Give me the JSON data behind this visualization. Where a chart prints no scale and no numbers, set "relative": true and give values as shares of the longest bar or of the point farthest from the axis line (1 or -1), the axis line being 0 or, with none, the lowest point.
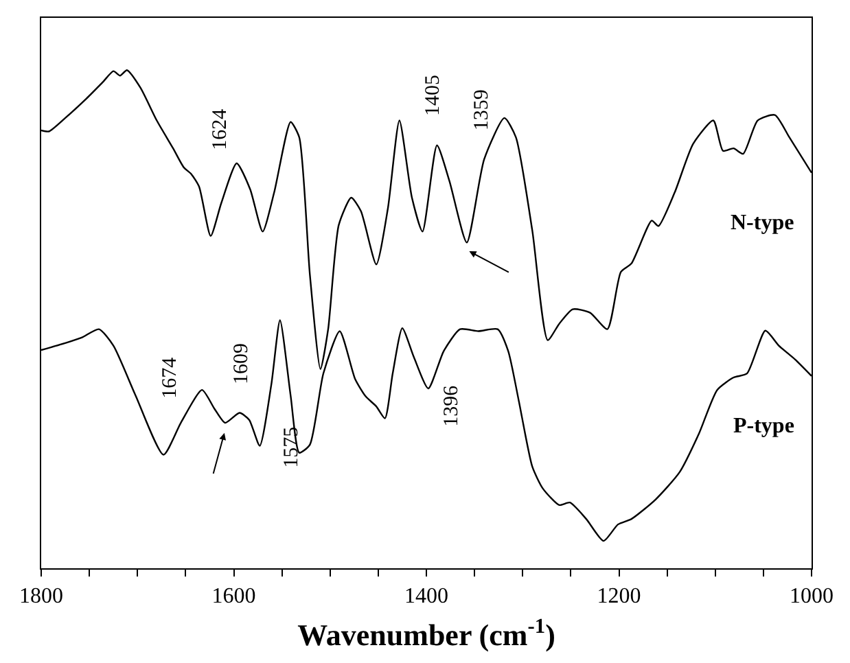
{
  "chart_data": {
    "type": "line",
    "relative": true,
    "xlabel": "Wavenumber (cm$^{-1}$)",
    "xlim": [
      1800,
      1000
    ],
    "xticks": [
      1800,
      {
        "value": 1750,
        "label": null
      },
      {
        "value": 1700,
        "label": null
      },
      {
        "value": 1650,
        "label": null
      },
      1600,
      {
        "value": 1550,
        "label": null
      },
      {
        "value": 1500,
        "label": null
      },
      {
        "value": 1450,
        "label": null
      },
      1400,
      {
        "value": 1350,
        "label": null
      },
      {
        "value": 1300,
        "label": null
      },
      {
        "value": 1250,
        "label": null
      },
      1200,
      {
        "value": 1150,
        "label": null
      },
      {
        "value": 1100,
        "label": null
      },
      {
        "value": 1050,
        "label": null
      },
      1000
    ],
    "tick_labels": "x",
    "legend": false,
    "marker": "none",
    "line_style": "solid",
    "series": [
      {
        "name": "N-type",
        "color": "#000000",
        "x": [
          1800,
          1792,
          1775,
          1753,
          1736,
          1725,
          1718,
          1711,
          1697,
          1680,
          1663,
          1652,
          1644,
          1636,
          1624,
          1613,
          1597,
          1583,
          1570,
          1558,
          1541,
          1532,
          1521,
          1510,
          1502,
          1491,
          1478,
          1468,
          1452,
          1440,
          1428,
          1415,
          1404,
          1389,
          1376,
          1358,
          1340,
          1319,
          1307,
          1290,
          1274,
          1262,
          1248,
          1230,
          1212,
          1198,
          1187,
          1166,
          1159,
          1142,
          1123,
          1102,
          1092,
          1081,
          1071,
          1056,
          1038,
          1023,
          1000
        ],
        "values": [
          0.879,
          0.877,
          0.904,
          0.943,
          0.976,
          0.998,
          0.989,
          1.0,
          0.965,
          0.899,
          0.843,
          0.805,
          0.791,
          0.766,
          0.667,
          0.733,
          0.813,
          0.761,
          0.676,
          0.755,
          0.896,
          0.865,
          0.59,
          0.4,
          0.48,
          0.689,
          0.744,
          0.717,
          0.61,
          0.722,
          0.899,
          0.744,
          0.676,
          0.849,
          0.777,
          0.654,
          0.821,
          0.904,
          0.865,
          0.678,
          0.458,
          0.491,
          0.52,
          0.513,
          0.48,
          0.595,
          0.612,
          0.698,
          0.687,
          0.755,
          0.852,
          0.899,
          0.838,
          0.843,
          0.832,
          0.899,
          0.91,
          0.865,
          0.794
        ]
      },
      {
        "name": "P-type",
        "color": "#000000",
        "x": [
          1800,
          1775,
          1758,
          1740,
          1725,
          1702,
          1673,
          1655,
          1633,
          1620,
          1609,
          1594,
          1584,
          1573,
          1561,
          1552,
          1541,
          1532,
          1521,
          1507,
          1490,
          1474,
          1463,
          1452,
          1443,
          1435,
          1425,
          1413,
          1398,
          1382,
          1365,
          1346,
          1326,
          1315,
          1304,
          1290,
          1279,
          1262,
          1251,
          1234,
          1216,
          1201,
          1187,
          1162,
          1137,
          1117,
          1098,
          1081,
          1067,
          1048,
          1034,
          1017,
          1000
        ],
        "values": [
          0.438,
          0.452,
          0.463,
          0.48,
          0.447,
          0.347,
          0.228,
          0.292,
          0.358,
          0.32,
          0.292,
          0.312,
          0.298,
          0.246,
          0.369,
          0.498,
          0.347,
          0.232,
          0.248,
          0.391,
          0.476,
          0.38,
          0.345,
          0.325,
          0.301,
          0.391,
          0.482,
          0.424,
          0.361,
          0.436,
          0.48,
          0.476,
          0.48,
          0.436,
          0.336,
          0.204,
          0.16,
          0.127,
          0.132,
          0.099,
          0.055,
          0.088,
          0.099,
          0.138,
          0.193,
          0.27,
          0.358,
          0.383,
          0.391,
          0.477,
          0.447,
          0.419,
          0.386
        ]
      }
    ],
    "annotations": [
      "1624",
      "1405",
      "1359",
      {
        "text": "1674",
        "x": 1673,
        "y": 0.228
      },
      {
        "text": "1609",
        "x": 1609,
        "y": 0.292
      },
      {
        "text": "1575",
        "x": 1573,
        "y": 0.246
      },
      {
        "text": "1396",
        "x": 1398,
        "y": 0.361
      }
    ]
  }
}
